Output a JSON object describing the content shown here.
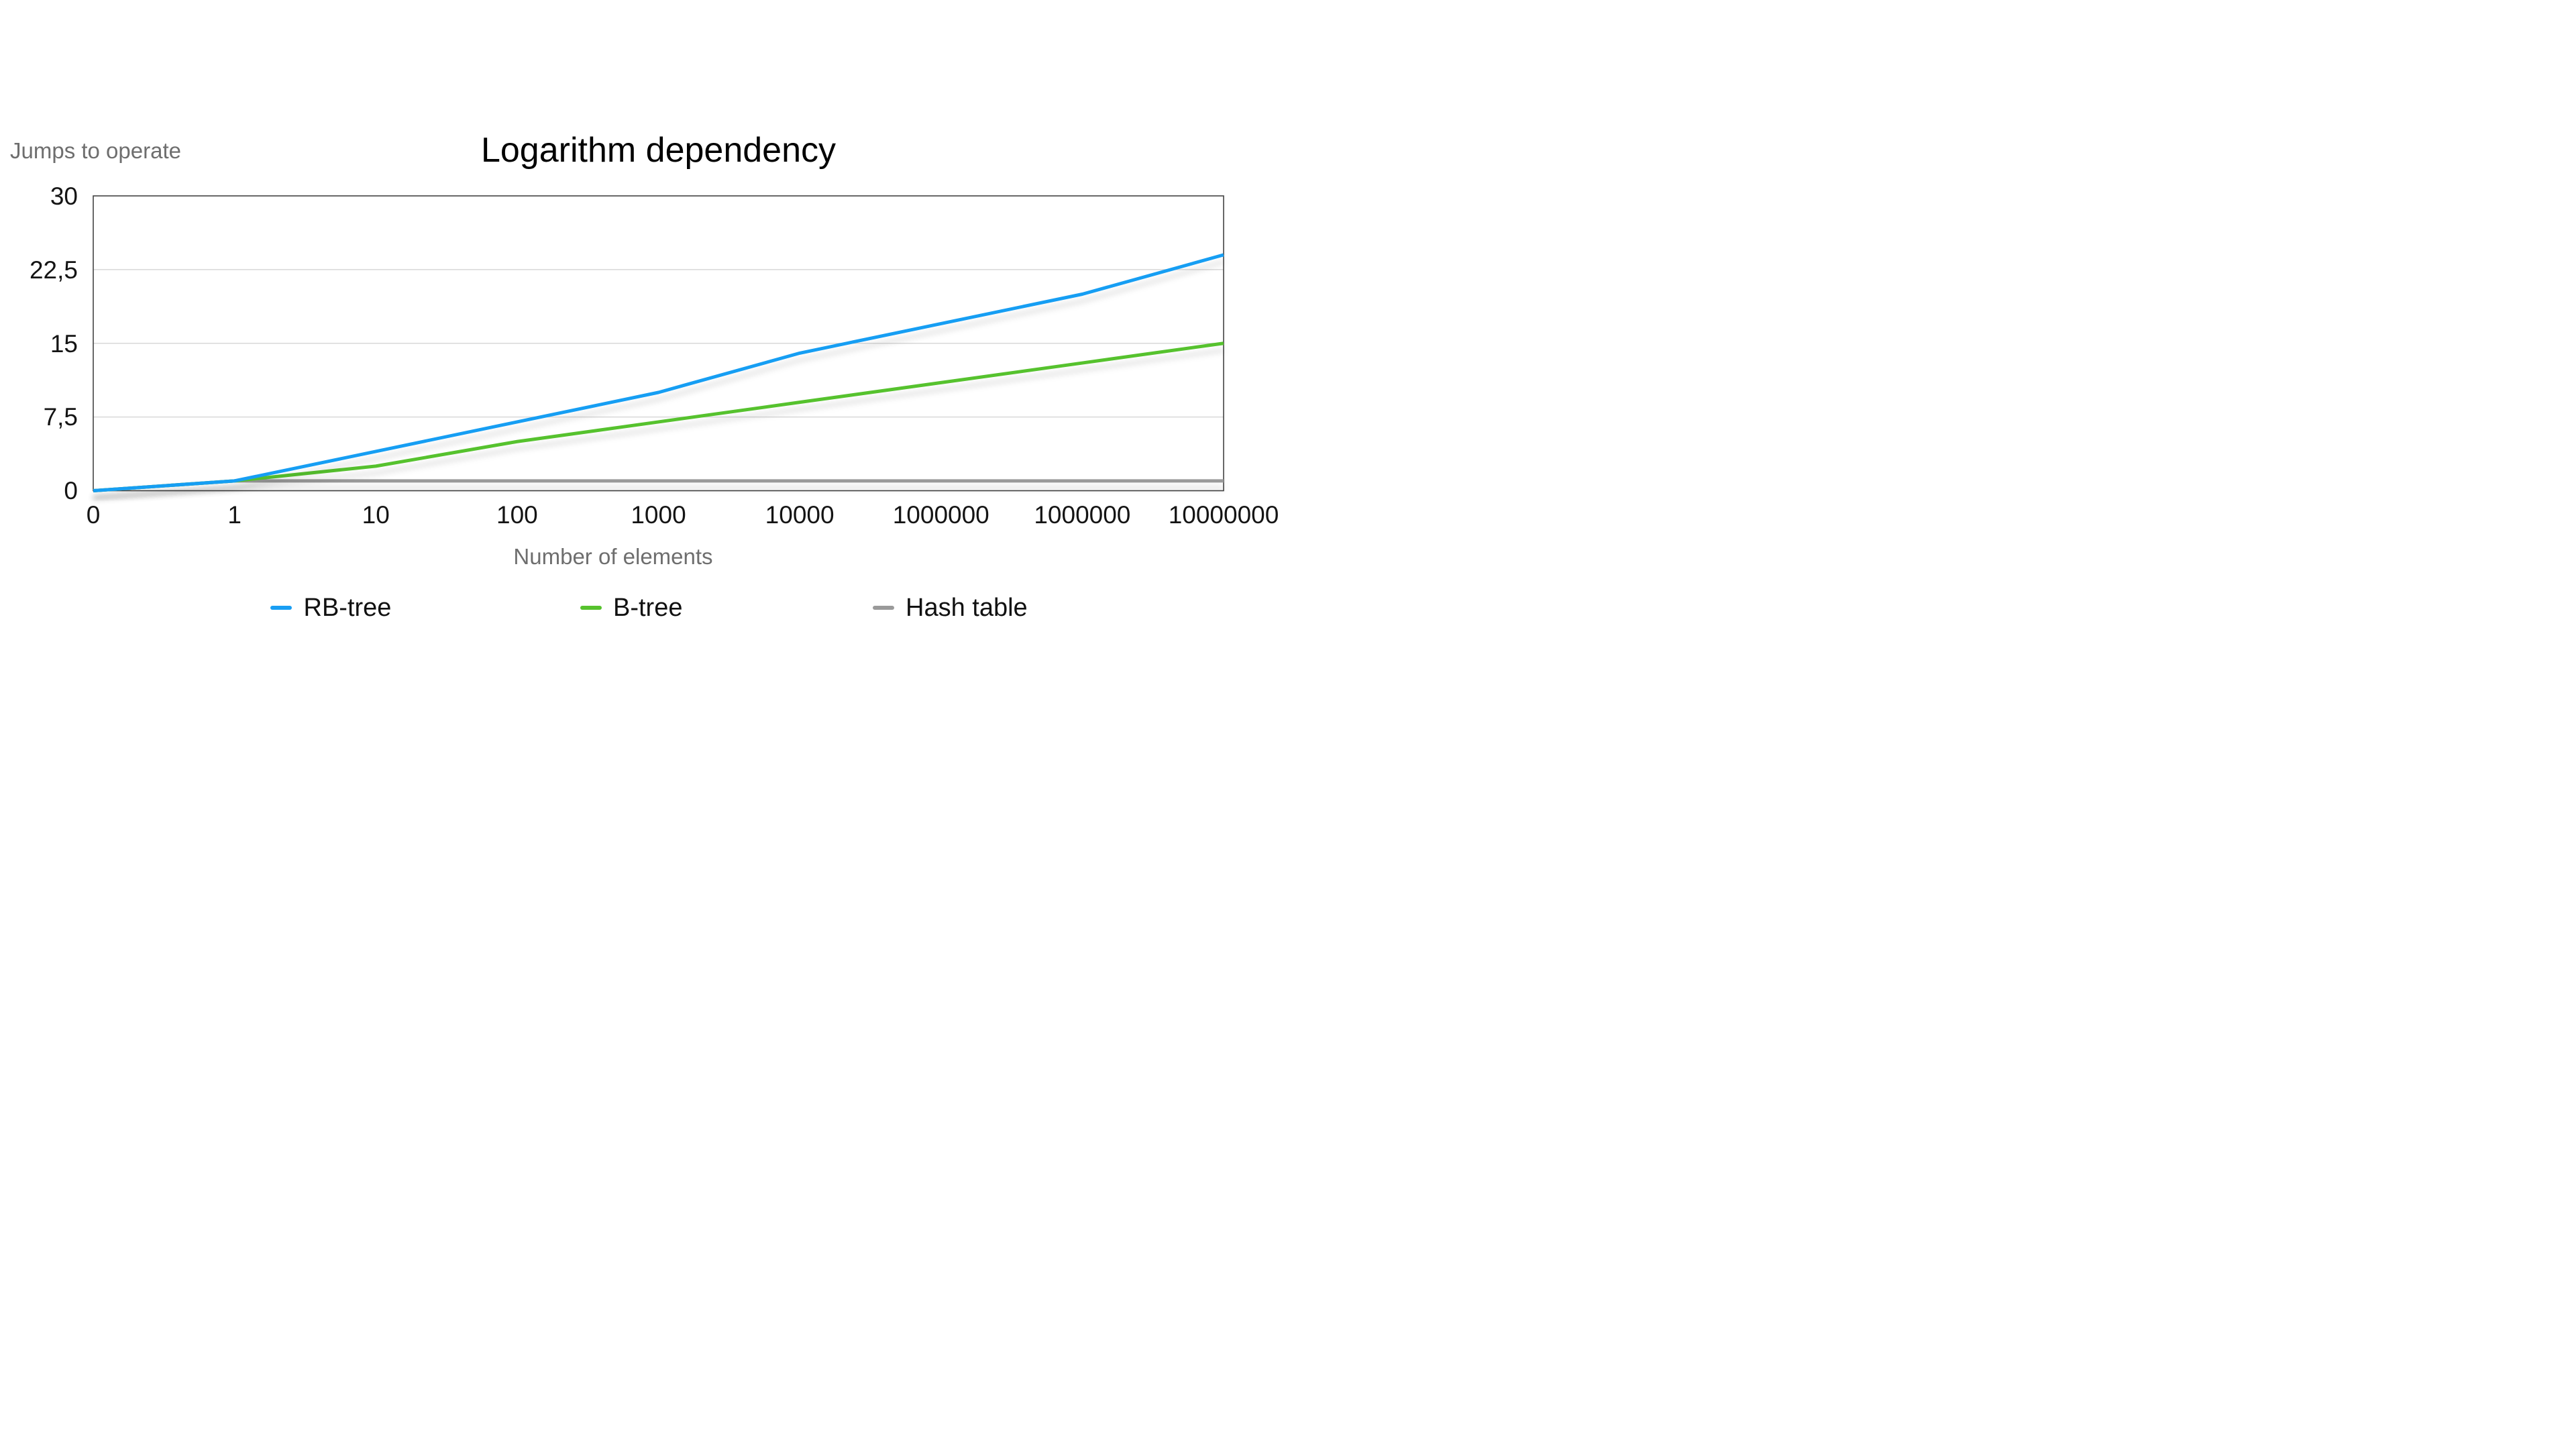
{
  "chart_data": {
    "type": "line",
    "title": "Logarithm dependency",
    "ylabel": "Jumps to operate",
    "xlabel": "Number of elements",
    "categories": [
      "0",
      "1",
      "10",
      "100",
      "1000",
      "10000",
      "1000000",
      "1000000",
      "10000000"
    ],
    "series": [
      {
        "name": "RB-tree",
        "color": "#199ef3",
        "values": [
          0,
          1,
          4,
          7,
          10,
          14,
          17,
          20,
          24
        ]
      },
      {
        "name": "B-tree",
        "color": "#56c22d",
        "values": [
          0,
          1,
          2.5,
          5,
          7,
          9,
          11,
          13,
          15
        ]
      },
      {
        "name": "Hash table",
        "color": "#9a9a9a",
        "values": [
          0,
          1,
          1,
          1,
          1,
          1,
          1,
          1,
          1
        ]
      }
    ],
    "ylim": [
      0,
      30
    ],
    "yticks": [
      {
        "value": 0,
        "label": "0"
      },
      {
        "value": 7.5,
        "label": "7,5"
      },
      {
        "value": 15,
        "label": "15"
      },
      {
        "value": 22.5,
        "label": "22,5"
      },
      {
        "value": 30,
        "label": "30"
      }
    ],
    "grid": true,
    "legend_position": "bottom",
    "colors": {
      "plot_border": "#434343",
      "gridline": "#d8d8d8",
      "tick_text": "#141414",
      "axis_title_text": "#6e6e6e",
      "title_text": "#000000",
      "legend_text": "#111111",
      "background": "#ffffff"
    }
  }
}
